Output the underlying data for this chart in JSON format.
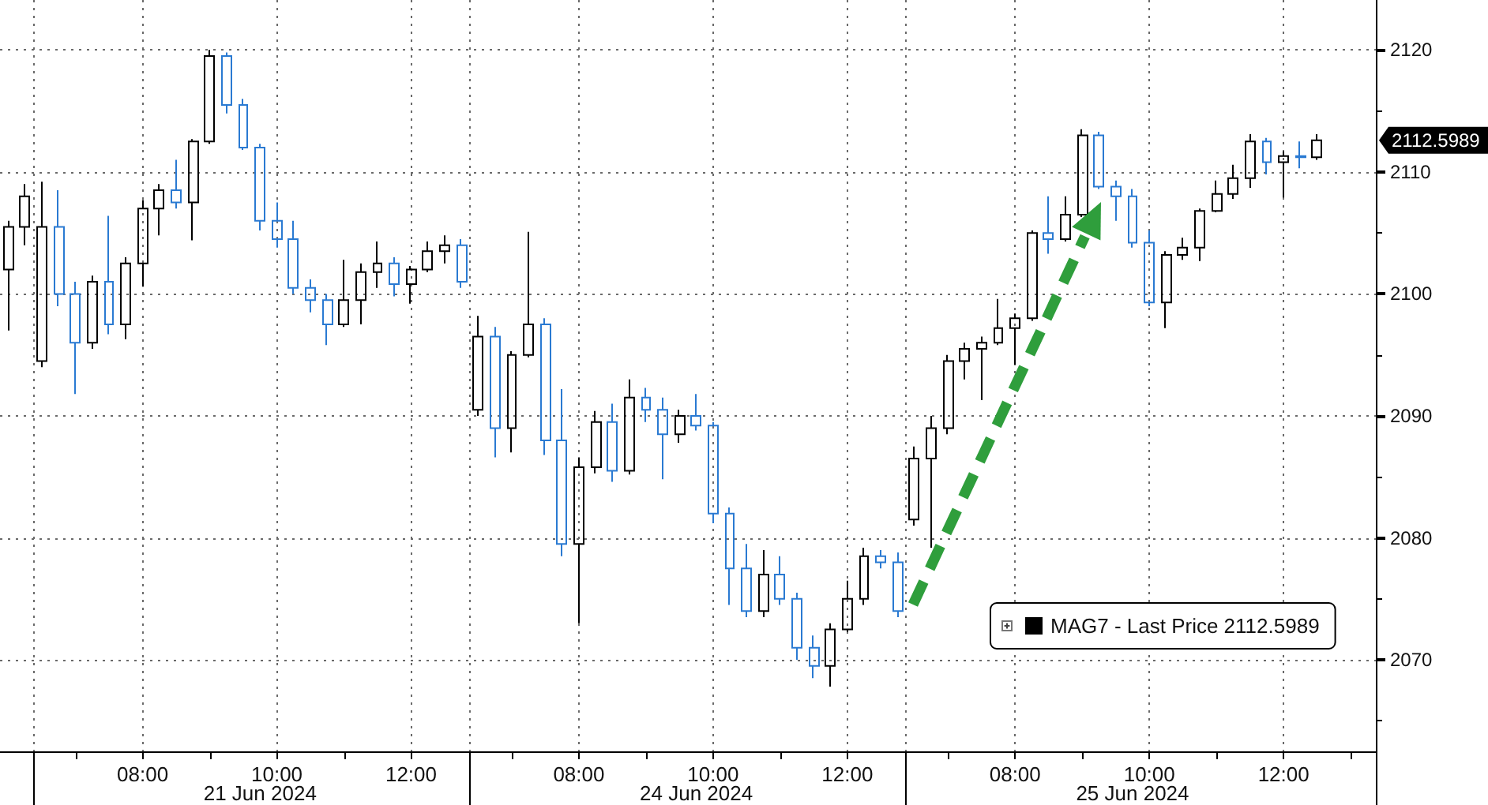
{
  "chart_data": {
    "type": "candlestick",
    "categories": [
      null,
      null,
      null,
      null,
      null,
      null,
      null,
      null,
      "08:00",
      null,
      null,
      null,
      null,
      null,
      null,
      null,
      "10:00",
      null,
      null,
      null,
      null,
      null,
      null,
      null,
      "12:00",
      null,
      null,
      null,
      null,
      null,
      null,
      null,
      null,
      null,
      "08:00",
      null,
      null,
      null,
      null,
      null,
      null,
      null,
      "10:00",
      null,
      null,
      null,
      null,
      null,
      null,
      null,
      "12:00",
      null,
      null,
      null,
      null,
      null,
      null,
      null,
      null,
      null,
      "08:00",
      null,
      null,
      null,
      null,
      null,
      null,
      null,
      "10:00",
      null,
      null,
      null,
      null,
      null,
      null,
      null,
      "12:00",
      null,
      null,
      null,
      null,
      null
    ],
    "series": [
      {
        "name": "MAG7 - Last Price 2112.5989",
        "color": "#000000",
        "ohlc": [
          [
            2102,
            2106,
            2097,
            2105.5
          ],
          [
            2105.5,
            2109,
            2104,
            2108
          ],
          [
            2094.5,
            2109.2,
            2094,
            2105.5
          ],
          [
            2105.5,
            2108.5,
            2099,
            2100
          ],
          [
            2100,
            2101,
            2091.8,
            2096
          ],
          [
            2096,
            2101.5,
            2095.5,
            2101
          ],
          [
            2101,
            2106.4,
            2096.7,
            2097.5
          ],
          [
            2097.5,
            2103,
            2096.3,
            2102.5
          ],
          [
            2102.5,
            2107.7,
            2100.6,
            2107
          ],
          [
            2107,
            2109,
            2104.8,
            2108.5
          ],
          [
            2108.5,
            2111,
            2107,
            2107.5
          ],
          [
            2107.5,
            2112.7,
            2104.4,
            2112.5
          ],
          [
            2112.5,
            2120,
            2112.3,
            2119.5
          ],
          [
            2119.5,
            2119.8,
            2114.8,
            2115.5
          ],
          [
            2115.5,
            2116,
            2111.8,
            2112
          ],
          [
            2112,
            2112.3,
            2105.2,
            2106
          ],
          [
            2106,
            2107.5,
            2103.8,
            2104.5
          ],
          [
            2104.5,
            2106,
            2100,
            2100.5
          ],
          [
            2100.5,
            2101.2,
            2098.5,
            2099.5
          ],
          [
            2099.5,
            2100,
            2095.8,
            2097.5
          ],
          [
            2097.5,
            2102.8,
            2097.3,
            2099.5
          ],
          [
            2099.5,
            2102.5,
            2097.5,
            2101.8
          ],
          [
            2101.8,
            2104.3,
            2100.5,
            2102.5
          ],
          [
            2102.5,
            2103,
            2099.8,
            2100.8
          ],
          [
            2100.8,
            2102.3,
            2099.2,
            2102
          ],
          [
            2102,
            2104.3,
            2101.8,
            2103.5
          ],
          [
            2103.5,
            2104.8,
            2102.5,
            2104
          ],
          [
            2104,
            2104.5,
            2100.5,
            2101
          ],
          [
            2090.5,
            2098.2,
            2090,
            2096.5
          ],
          [
            2096.5,
            2097.3,
            2086.6,
            2089
          ],
          [
            2089,
            2095.3,
            2087,
            2095
          ],
          [
            2095,
            2105.1,
            2094.8,
            2097.5
          ],
          [
            2097.5,
            2098,
            2086.8,
            2088
          ],
          [
            2088,
            2092.2,
            2078.5,
            2079.5
          ],
          [
            2079.5,
            2086.6,
            2073,
            2085.8
          ],
          [
            2085.8,
            2090.4,
            2085.3,
            2089.5
          ],
          [
            2089.5,
            2091,
            2084.6,
            2085.5
          ],
          [
            2085.5,
            2093,
            2085.2,
            2091.5
          ],
          [
            2091.5,
            2092.3,
            2089.5,
            2090.5
          ],
          [
            2090.5,
            2091.5,
            2084.8,
            2088.5
          ],
          [
            2088.5,
            2090.5,
            2087.8,
            2090
          ],
          [
            2090,
            2091.8,
            2088.8,
            2089.2
          ],
          [
            2089.2,
            2089.5,
            2081.2,
            2082
          ],
          [
            2082,
            2082.5,
            2074.5,
            2077.5
          ],
          [
            2077.5,
            2079.5,
            2073.5,
            2074
          ],
          [
            2074,
            2079,
            2073.5,
            2077
          ],
          [
            2077,
            2078.5,
            2074.5,
            2075
          ],
          [
            2075,
            2075.5,
            2070,
            2071
          ],
          [
            2071,
            2072,
            2068.5,
            2069.5
          ],
          [
            2069.5,
            2073,
            2067.8,
            2072.5
          ],
          [
            2072.5,
            2076.5,
            2072.3,
            2075
          ],
          [
            2075,
            2079.2,
            2074.5,
            2078.5
          ],
          [
            2078.5,
            2079,
            2077.5,
            2078
          ],
          [
            2078,
            2078.8,
            2073.5,
            2074
          ],
          [
            2081.5,
            2087.5,
            2081,
            2086.5
          ],
          [
            2086.5,
            2090,
            2079.2,
            2089
          ],
          [
            2089,
            2095,
            2088.5,
            2094.5
          ],
          [
            2094.5,
            2096,
            2093,
            2095.5
          ],
          [
            2095.5,
            2096.5,
            2091.3,
            2096
          ],
          [
            2096,
            2099.6,
            2095.8,
            2097.2
          ],
          [
            2097.2,
            2098.4,
            2094.2,
            2098
          ],
          [
            2098,
            2105.2,
            2097.8,
            2105
          ],
          [
            2105,
            2108,
            2103.3,
            2104.5
          ],
          [
            2104.5,
            2108,
            2104.3,
            2106.5
          ],
          [
            2106.5,
            2113.5,
            2106.3,
            2113
          ],
          [
            2113,
            2113.3,
            2108.6,
            2108.8
          ],
          [
            2108.8,
            2109.3,
            2106,
            2108
          ],
          [
            2108,
            2108.6,
            2103.8,
            2104.2
          ],
          [
            2104.2,
            2105.2,
            2099,
            2099.3
          ],
          [
            2099.3,
            2103.5,
            2097.2,
            2103.2
          ],
          [
            2103.2,
            2104.6,
            2102.8,
            2103.8
          ],
          [
            2103.8,
            2107,
            2102.7,
            2106.8
          ],
          [
            2106.8,
            2109.3,
            2106.7,
            2108.2
          ],
          [
            2108.2,
            2110.6,
            2107.8,
            2109.5
          ],
          [
            2109.5,
            2113.1,
            2108.7,
            2112.5
          ],
          [
            2112.5,
            2112.8,
            2109.8,
            2110.8
          ],
          [
            2110.8,
            2111.7,
            2107.9,
            2111.3
          ],
          [
            2111.3,
            2112.5,
            2110.3,
            2111.2
          ],
          [
            2111.2,
            2113.1,
            2111,
            2112.5989
          ],
          null,
          null,
          null
        ],
        "colors": [
          "#000000",
          "#000000",
          "#000000",
          "#2a7ad2",
          "#2a7ad2",
          "#000000",
          "#2a7ad2",
          "#000000",
          "#000000",
          "#000000",
          "#2a7ad2",
          "#000000",
          "#000000",
          "#2a7ad2",
          "#2a7ad2",
          "#2a7ad2",
          "#2a7ad2",
          "#2a7ad2",
          "#2a7ad2",
          "#2a7ad2",
          "#000000",
          "#000000",
          "#000000",
          "#2a7ad2",
          "#000000",
          "#000000",
          "#000000",
          "#2a7ad2",
          "#000000",
          "#2a7ad2",
          "#000000",
          "#000000",
          "#2a7ad2",
          "#2a7ad2",
          "#000000",
          "#000000",
          "#2a7ad2",
          "#000000",
          "#2a7ad2",
          "#2a7ad2",
          "#000000",
          "#2a7ad2",
          "#2a7ad2",
          "#2a7ad2",
          "#2a7ad2",
          "#000000",
          "#2a7ad2",
          "#2a7ad2",
          "#2a7ad2",
          "#000000",
          "#000000",
          "#000000",
          "#2a7ad2",
          "#2a7ad2",
          "#000000",
          "#000000",
          "#000000",
          "#000000",
          "#000000",
          "#000000",
          "#000000",
          "#000000",
          "#2a7ad2",
          "#000000",
          "#000000",
          "#2a7ad2",
          "#2a7ad2",
          "#2a7ad2",
          "#2a7ad2",
          "#000000",
          "#000000",
          "#000000",
          "#000000",
          "#000000",
          "#000000",
          "#2a7ad2",
          "#000000",
          "#2a7ad2",
          "#000000",
          null,
          null,
          null
        ]
      }
    ],
    "ylim": [
      2062.5,
      2124.1
    ],
    "yticks": [
      {
        "value": 2065,
        "label": null
      },
      2070,
      {
        "value": 2075,
        "label": null
      },
      2080,
      {
        "value": 2085,
        "label": null
      },
      2090,
      {
        "value": 2095,
        "label": null
      },
      2100,
      {
        "value": 2105,
        "label": null
      },
      2110,
      {
        "value": 2115,
        "label": null
      },
      2120
    ],
    "grid": true,
    "legend": "bottom right",
    "annotations": [
      "21 Jun 2024",
      "24 Jun 2024",
      "25 Jun 2024",
      "2112.5989"
    ]
  }
}
